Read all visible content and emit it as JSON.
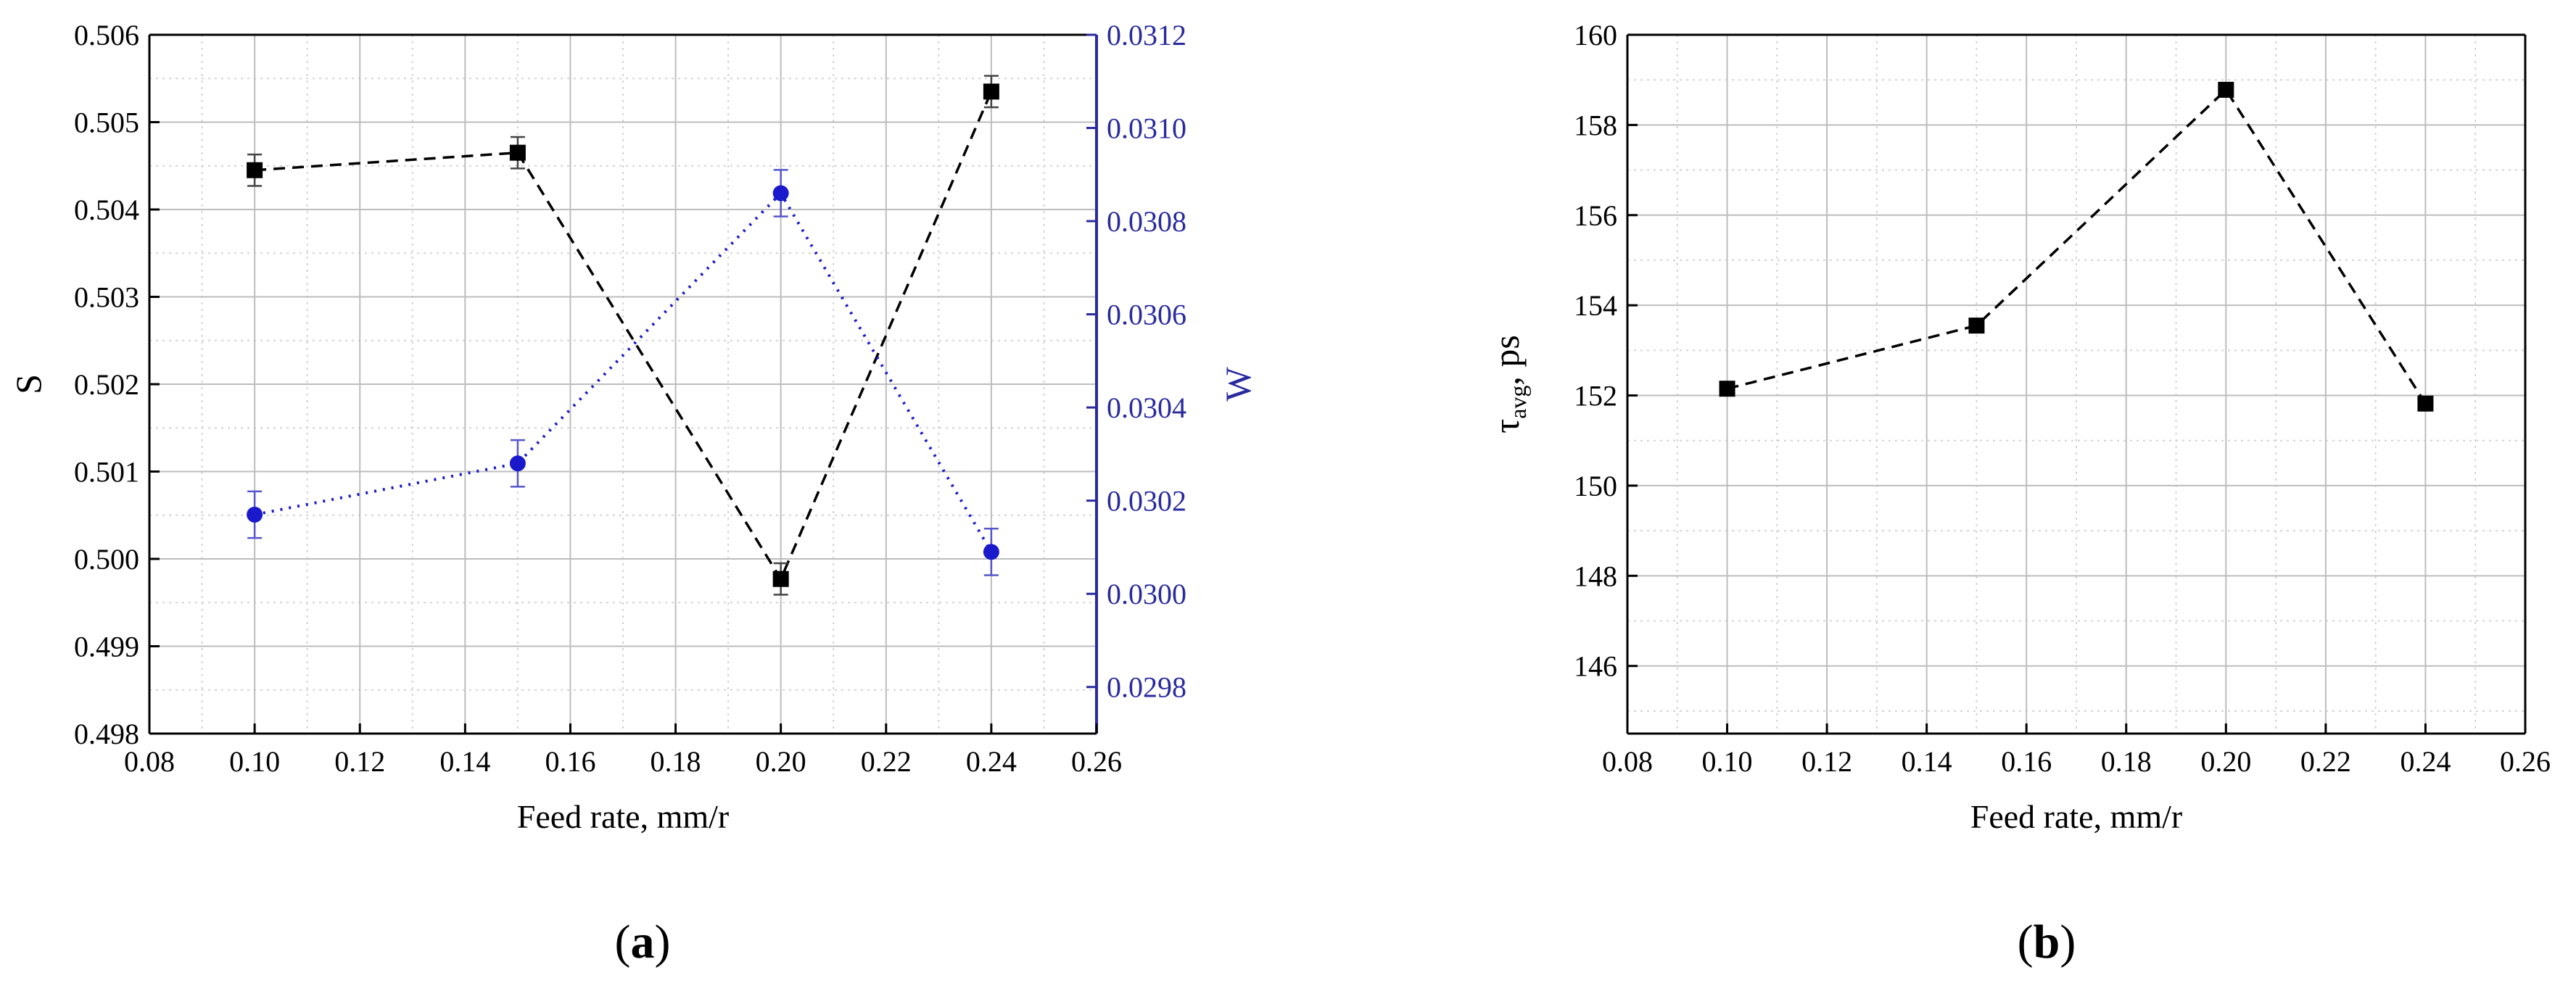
{
  "chart_data": [
    {
      "panel": "a",
      "type": "line",
      "xlabel": "Feed rate, mm/r",
      "ylabel": "S",
      "y2label": "W",
      "xlim": [
        0.08,
        0.26
      ],
      "xticks": [
        "0.08",
        "0.10",
        "0.12",
        "0.14",
        "0.16",
        "0.18",
        "0.20",
        "0.22",
        "0.24",
        "0.26"
      ],
      "ylim": [
        0.498,
        0.506
      ],
      "yticks": [
        "0.498",
        "0.499",
        "0.500",
        "0.501",
        "0.502",
        "0.503",
        "0.504",
        "0.505",
        "0.506"
      ],
      "y2lim": [
        0.0297,
        0.0312
      ],
      "y2ticks": [
        "0.0298",
        "0.0300",
        "0.0302",
        "0.0304",
        "0.0306",
        "0.0308",
        "0.0310",
        "0.0312"
      ],
      "grid": true,
      "x": [
        0.1,
        0.15,
        0.2,
        0.24
      ],
      "series": [
        {
          "axis": "left",
          "marker": "square",
          "line": "dashed",
          "color": "#000000",
          "values": [
            0.50445,
            0.50465,
            0.49977,
            0.50535
          ],
          "errors": [
            0.00018,
            0.00018,
            0.00018,
            0.00018
          ]
        },
        {
          "axis": "right",
          "marker": "circle",
          "line": "dotted",
          "color": "#1a1acc",
          "values": [
            0.03017,
            0.03028,
            0.03086,
            0.03009
          ],
          "errors": [
            5e-05,
            5e-05,
            5e-05,
            5e-05
          ]
        }
      ],
      "right_axis_color": "#2a2aa0"
    },
    {
      "panel": "b",
      "type": "line",
      "xlabel": "Feed rate, mm/r",
      "ylabel": "τ",
      "ylabel_sub": "avg",
      "ylabel_suffix": ", ps",
      "xlim": [
        0.08,
        0.26
      ],
      "xticks": [
        "0.08",
        "0.10",
        "0.12",
        "0.14",
        "0.16",
        "0.18",
        "0.20",
        "0.22",
        "0.24",
        "0.26"
      ],
      "ylim": [
        144.5,
        160
      ],
      "yticks": [
        "146",
        "148",
        "150",
        "152",
        "154",
        "156",
        "158",
        "160"
      ],
      "grid": true,
      "x": [
        0.1,
        0.15,
        0.2,
        0.24
      ],
      "series": [
        {
          "axis": "left",
          "marker": "square",
          "line": "dashed",
          "color": "#000000",
          "values": [
            152.15,
            153.55,
            158.78,
            151.82
          ]
        }
      ]
    }
  ],
  "panel_labels": {
    "a": "a",
    "b": "b"
  }
}
